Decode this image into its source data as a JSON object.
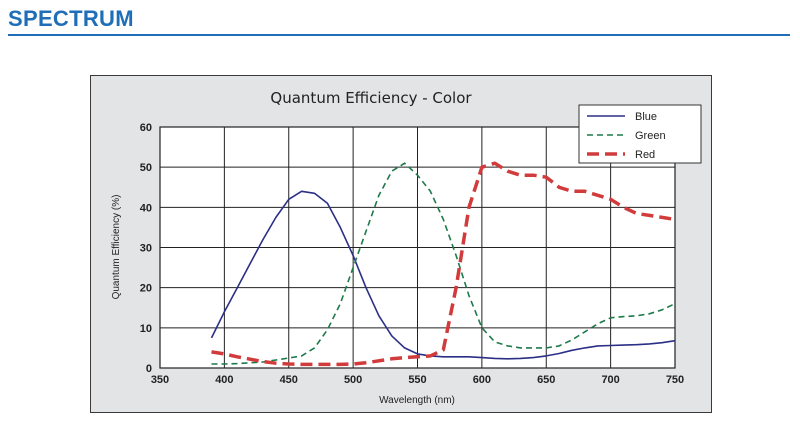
{
  "header": {
    "title": "SPECTRUM"
  },
  "chart_data": {
    "type": "line",
    "title": "Quantum Efficiency - Color",
    "xlabel": "Wavelength (nm)",
    "ylabel": "Quantum Efficiency (%)",
    "xlim": [
      350,
      750
    ],
    "ylim": [
      0,
      60
    ],
    "x_ticks": [
      "350",
      "400",
      "450",
      "500",
      "550",
      "600",
      "650",
      "700",
      "750"
    ],
    "y_ticks": [
      "0",
      "10",
      "20",
      "30",
      "40",
      "50",
      "60"
    ],
    "grid": true,
    "legend_position": "top-right",
    "series": [
      {
        "name": "Blue",
        "color": "#2b2f86",
        "style": "solid",
        "x": [
          390,
          400,
          410,
          420,
          430,
          440,
          450,
          460,
          470,
          480,
          490,
          500,
          510,
          520,
          530,
          540,
          550,
          560,
          570,
          580,
          590,
          600,
          610,
          620,
          630,
          640,
          650,
          660,
          670,
          680,
          690,
          700,
          710,
          720,
          730,
          740,
          750
        ],
        "y": [
          7.5,
          14,
          20,
          26,
          32,
          37.5,
          42,
          44,
          43.5,
          41,
          35,
          28,
          20,
          13,
          8,
          5,
          3.5,
          3,
          2.8,
          2.8,
          2.8,
          2.6,
          2.4,
          2.3,
          2.4,
          2.6,
          3,
          3.6,
          4.4,
          5,
          5.5,
          5.6,
          5.7,
          5.8,
          6,
          6.3,
          6.8
        ]
      },
      {
        "name": "Green",
        "color": "#1e7a4a",
        "style": "dashed",
        "x": [
          390,
          400,
          410,
          420,
          430,
          440,
          450,
          460,
          470,
          480,
          490,
          500,
          510,
          520,
          530,
          540,
          550,
          560,
          570,
          580,
          590,
          600,
          610,
          620,
          630,
          640,
          650,
          660,
          670,
          680,
          690,
          700,
          710,
          720,
          730,
          740,
          750
        ],
        "y": [
          1,
          1,
          1.1,
          1.3,
          1.5,
          2,
          2.5,
          3,
          5,
          9.5,
          16,
          25,
          34,
          43,
          49,
          51,
          48,
          44,
          37,
          28,
          18,
          10,
          6.5,
          5.5,
          5,
          5,
          5,
          5.5,
          7,
          9,
          11,
          12.5,
          12.8,
          13,
          13.5,
          14.5,
          16
        ]
      },
      {
        "name": "Red",
        "color": "#d23b3b",
        "style": "dashed-thick",
        "x": [
          390,
          400,
          410,
          420,
          430,
          440,
          450,
          460,
          470,
          480,
          490,
          500,
          510,
          520,
          530,
          540,
          550,
          560,
          570,
          580,
          590,
          600,
          610,
          620,
          630,
          640,
          650,
          660,
          670,
          680,
          690,
          700,
          710,
          720,
          730,
          740,
          750
        ],
        "y": [
          4,
          3.5,
          2.8,
          2.2,
          1.6,
          1.2,
          1,
          0.9,
          0.9,
          0.9,
          0.9,
          1,
          1.3,
          1.8,
          2.3,
          2.6,
          2.8,
          3,
          4.5,
          20,
          40,
          50,
          51,
          49,
          48,
          48,
          47.5,
          45,
          44,
          44,
          43,
          42,
          40,
          38.5,
          38,
          37.5,
          37
        ]
      }
    ]
  }
}
